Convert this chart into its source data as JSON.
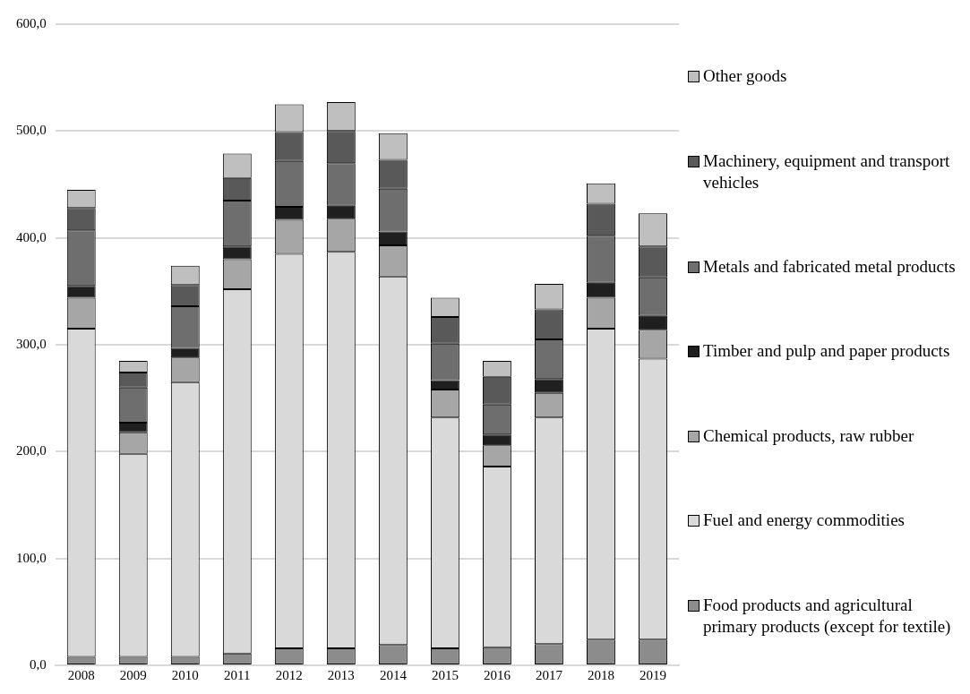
{
  "chart_data": {
    "type": "bar",
    "stacked": true,
    "categories": [
      "2008",
      "2009",
      "2010",
      "2011",
      "2012",
      "2013",
      "2014",
      "2015",
      "2016",
      "2017",
      "2018",
      "2019"
    ],
    "series": [
      {
        "name": "Food products and agricultural primary products (except for textile)",
        "color": "#8c8c8c",
        "values": [
          8,
          8,
          8,
          11,
          16,
          16,
          19,
          16,
          17,
          20,
          24,
          24
        ]
      },
      {
        "name": "Fuel and energy commodities",
        "color": "#d9d9d9",
        "values": [
          307,
          190,
          257,
          341,
          369,
          371,
          345,
          216,
          169,
          212,
          291,
          263
        ]
      },
      {
        "name": "Chemical products, raw rubber",
        "color": "#a6a6a6",
        "values": [
          29,
          20,
          23,
          28,
          32,
          31,
          29,
          26,
          20,
          23,
          29,
          27
        ]
      },
      {
        "name": "Timber and pulp and paper products",
        "color": "#1f1f1f",
        "values": [
          11,
          9,
          9,
          12,
          12,
          12,
          13,
          9,
          10,
          13,
          14,
          13
        ]
      },
      {
        "name": "Metals and fabricated metal products",
        "color": "#6e6e6e",
        "values": [
          52,
          33,
          39,
          43,
          43,
          40,
          40,
          34,
          28,
          37,
          44,
          36
        ]
      },
      {
        "name": "Machinery, equipment and transport vehicles",
        "color": "#595959",
        "values": [
          21,
          14,
          20,
          21,
          27,
          30,
          27,
          25,
          26,
          28,
          30,
          29
        ]
      },
      {
        "name": "Other goods",
        "color": "#bfbfbf",
        "values": [
          17,
          11,
          18,
          23,
          26,
          27,
          25,
          18,
          15,
          24,
          19,
          31
        ]
      }
    ],
    "ylim": [
      0,
      600
    ],
    "yticks": [
      {
        "value": 0,
        "label": "0,0"
      },
      {
        "value": 100,
        "label": "100,0"
      },
      {
        "value": 200,
        "label": "200,0"
      },
      {
        "value": 300,
        "label": "300,0"
      },
      {
        "value": 400,
        "label": "400,0"
      },
      {
        "value": 500,
        "label": "500,0"
      },
      {
        "value": 600,
        "label": "600,0"
      }
    ],
    "grid": "y",
    "legend": "right"
  }
}
